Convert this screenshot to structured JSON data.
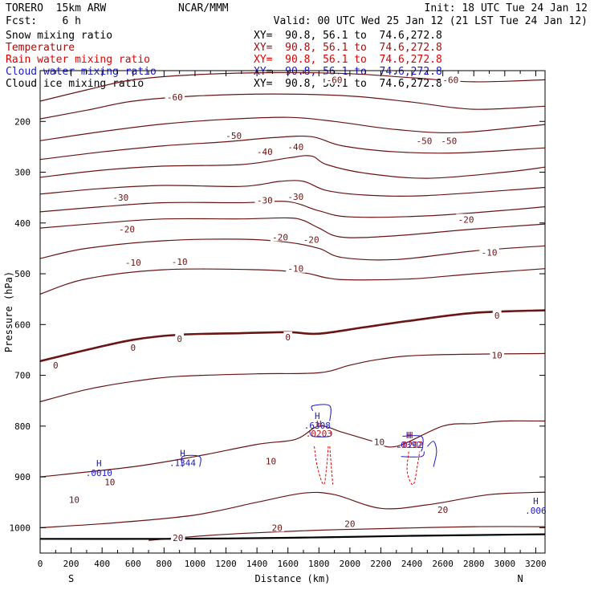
{
  "header": {
    "left_title": "TORERO  15km ARW",
    "center_title": "NCAR/MMM",
    "init": "Init: 18 UTC Tue 24 Jan 12",
    "fcst": "Fcst:    6 h",
    "valid": "Valid: 00 UTC Wed 25 Jan 12 (21 LST Tue 24 Jan 12)"
  },
  "fields": [
    {
      "name": "Snow mixing ratio",
      "xy": "XY=  90.8, 56.1 to  74.6,272.8",
      "color": "#000000"
    },
    {
      "name": "Temperature",
      "xy": "XY=  90.8, 56.1 to  74.6,272.8",
      "color": "#a01010"
    },
    {
      "name": "Rain water mixing ratio",
      "xy": "XY=  90.8, 56.1 to  74.6,272.8",
      "color": "#e00000"
    },
    {
      "name": "Cloud water mixing ratio",
      "xy": "XY=  90.8, 56.1 to  74.6,272.8",
      "color": "#1a1acc"
    },
    {
      "name": "Cloud ice mixing ratio",
      "xy": "XY=  90.8, 56.1 to  74.6,272.8",
      "color": "#000000"
    }
  ],
  "chart_data": {
    "type": "contour",
    "xlabel": "Distance (km)",
    "ylabel": "Pressure (hPa)",
    "xlim": [
      0,
      3260
    ],
    "ylim": [
      1050,
      100
    ],
    "x_ticks": [
      0,
      100,
      200,
      300,
      400,
      500,
      600,
      700,
      800,
      900,
      1000,
      1100,
      1200,
      1300,
      1400,
      1500,
      1600,
      1700,
      1800,
      1900,
      2000,
      2100,
      2200,
      2300,
      2400,
      2500,
      2600,
      2700,
      2800,
      2900,
      3000,
      3100,
      3200
    ],
    "x_tick_labels": [
      "0",
      "200",
      "400",
      "600",
      "800",
      "1000",
      "1200",
      "1400",
      "1600",
      "1800",
      "2000",
      "2200",
      "2400",
      "2600",
      "2800",
      "3000",
      "3200"
    ],
    "y_ticks": [
      200,
      300,
      400,
      500,
      600,
      700,
      800,
      900,
      1000
    ],
    "end_labels": {
      "left": "S",
      "right": "N"
    },
    "temperature_colors": {
      "line": "#6a1414",
      "zero": "#6a1414",
      "surface": "#000000"
    },
    "temperature_contours": [
      {
        "level": -60,
        "points": [
          [
            0,
            160
          ],
          [
            300,
            138
          ],
          [
            600,
            118
          ],
          [
            1000,
            108
          ],
          [
            1500,
            104
          ],
          [
            2000,
            106
          ],
          [
            2400,
            114
          ],
          [
            2800,
            122
          ],
          [
            3260,
            118
          ]
        ]
      },
      {
        "level": -60,
        "points": [
          [
            0,
            195
          ],
          [
            300,
            178
          ],
          [
            600,
            160
          ],
          [
            1000,
            150
          ],
          [
            1500,
            146
          ],
          [
            2000,
            150
          ],
          [
            2400,
            162
          ],
          [
            2800,
            176
          ],
          [
            3260,
            170
          ]
        ]
      },
      {
        "level": -50,
        "points": [
          [
            0,
            238
          ],
          [
            400,
            220
          ],
          [
            800,
            205
          ],
          [
            1200,
            196
          ],
          [
            1600,
            192
          ],
          [
            1900,
            200
          ],
          [
            2300,
            216
          ],
          [
            2700,
            222
          ],
          [
            3260,
            206
          ]
        ]
      },
      {
        "level": -40,
        "points": [
          [
            0,
            275
          ],
          [
            400,
            260
          ],
          [
            800,
            248
          ],
          [
            1200,
            240
          ],
          [
            1500,
            232
          ],
          [
            1750,
            230
          ],
          [
            1950,
            248
          ],
          [
            2300,
            260
          ],
          [
            2700,
            262
          ],
          [
            3260,
            252
          ]
        ]
      },
      {
        "level": -30,
        "points": [
          [
            0,
            310
          ],
          [
            400,
            296
          ],
          [
            800,
            288
          ],
          [
            1300,
            285
          ],
          [
            1600,
            272
          ],
          [
            1750,
            268
          ],
          [
            1850,
            285
          ],
          [
            2100,
            302
          ],
          [
            2500,
            312
          ],
          [
            3000,
            300
          ],
          [
            3260,
            290
          ]
        ]
      },
      {
        "level": -30,
        "points": [
          [
            0,
            343
          ],
          [
            400,
            332
          ],
          [
            800,
            326
          ],
          [
            1300,
            328
          ],
          [
            1550,
            318
          ],
          [
            1700,
            318
          ],
          [
            1850,
            336
          ],
          [
            2100,
            345
          ],
          [
            2500,
            346
          ],
          [
            3260,
            330
          ]
        ]
      },
      {
        "level": -20,
        "points": [
          [
            0,
            378
          ],
          [
            400,
            368
          ],
          [
            800,
            360
          ],
          [
            1300,
            360
          ],
          [
            1600,
            358
          ],
          [
            1800,
            376
          ],
          [
            2000,
            388
          ],
          [
            2500,
            386
          ],
          [
            3000,
            375
          ],
          [
            3260,
            368
          ]
        ]
      },
      {
        "level": -20,
        "points": [
          [
            0,
            410
          ],
          [
            400,
            400
          ],
          [
            800,
            392
          ],
          [
            1300,
            392
          ],
          [
            1600,
            390
          ],
          [
            1700,
            395
          ],
          [
            1800,
            410
          ],
          [
            1950,
            428
          ],
          [
            2300,
            425
          ],
          [
            2800,
            412
          ],
          [
            3260,
            402
          ]
        ]
      },
      {
        "level": -10,
        "points": [
          [
            0,
            470
          ],
          [
            300,
            450
          ],
          [
            800,
            435
          ],
          [
            1300,
            432
          ],
          [
            1600,
            438
          ],
          [
            1800,
            450
          ],
          [
            1950,
            468
          ],
          [
            2300,
            472
          ],
          [
            2800,
            455
          ],
          [
            3260,
            445
          ]
        ]
      },
      {
        "level": -10,
        "points": [
          [
            0,
            540
          ],
          [
            300,
            510
          ],
          [
            800,
            492
          ],
          [
            1400,
            492
          ],
          [
            1700,
            498
          ],
          [
            1850,
            508
          ],
          [
            2000,
            512
          ],
          [
            2400,
            510
          ],
          [
            2800,
            500
          ],
          [
            3260,
            490
          ]
        ]
      },
      {
        "level": 0,
        "points": [
          [
            0,
            672
          ],
          [
            300,
            650
          ],
          [
            600,
            630
          ],
          [
            900,
            620
          ],
          [
            1300,
            617
          ],
          [
            1600,
            615
          ],
          [
            1800,
            618
          ],
          [
            2100,
            605
          ],
          [
            2400,
            592
          ],
          [
            2800,
            577
          ],
          [
            3260,
            572
          ]
        ]
      },
      {
        "level": 10,
        "points": [
          [
            0,
            752
          ],
          [
            300,
            728
          ],
          [
            600,
            712
          ],
          [
            900,
            702
          ],
          [
            1400,
            697
          ],
          [
            1800,
            695
          ],
          [
            2000,
            680
          ],
          [
            2200,
            668
          ],
          [
            2500,
            660
          ],
          [
            3260,
            657
          ]
        ]
      },
      {
        "level": 10,
        "points": [
          [
            0,
            900
          ],
          [
            600,
            880
          ],
          [
            1000,
            860
          ],
          [
            1400,
            836
          ],
          [
            1650,
            826
          ],
          [
            1800,
            800
          ],
          [
            1950,
            812
          ],
          [
            2150,
            830
          ],
          [
            2300,
            840
          ],
          [
            2600,
            800
          ],
          [
            2800,
            795
          ],
          [
            3000,
            790
          ],
          [
            3260,
            790
          ]
        ]
      },
      {
        "level": 20,
        "points": [
          [
            0,
            1000
          ],
          [
            500,
            990
          ],
          [
            1000,
            975
          ],
          [
            1400,
            950
          ],
          [
            1700,
            932
          ],
          [
            1900,
            935
          ],
          [
            2200,
            962
          ],
          [
            2500,
            955
          ],
          [
            2900,
            935
          ],
          [
            3260,
            930
          ]
        ]
      },
      {
        "level": 20,
        "points": [
          [
            700,
            1025
          ],
          [
            1100,
            1015
          ],
          [
            1400,
            1010
          ],
          [
            1800,
            1005
          ],
          [
            2200,
            1002
          ],
          [
            2800,
            998
          ],
          [
            3260,
            998
          ]
        ]
      }
    ],
    "surface_line": [
      [
        0,
        1022
      ],
      [
        800,
        1022
      ],
      [
        1600,
        1020
      ],
      [
        2400,
        1016
      ],
      [
        3260,
        1013
      ]
    ],
    "contour_labels": [
      {
        "text": "-60",
        "x": 870,
        "y": 152
      },
      {
        "text": "-60",
        "x": 1900,
        "y": 118
      },
      {
        "text": "-60",
        "x": 2650,
        "y": 118
      },
      {
        "text": "-50",
        "x": 1250,
        "y": 228
      },
      {
        "text": "-50",
        "x": 2480,
        "y": 238
      },
      {
        "text": "-50",
        "x": 2640,
        "y": 238
      },
      {
        "text": "-40",
        "x": 1450,
        "y": 260
      },
      {
        "text": "-40",
        "x": 1650,
        "y": 250
      },
      {
        "text": "-30",
        "x": 520,
        "y": 350
      },
      {
        "text": "-30",
        "x": 1450,
        "y": 355
      },
      {
        "text": "-30",
        "x": 1650,
        "y": 348
      },
      {
        "text": "-20",
        "x": 560,
        "y": 412
      },
      {
        "text": "-20",
        "x": 1550,
        "y": 428
      },
      {
        "text": "-20",
        "x": 1750,
        "y": 433
      },
      {
        "text": "-20",
        "x": 2750,
        "y": 393
      },
      {
        "text": "-10",
        "x": 600,
        "y": 478
      },
      {
        "text": "-10",
        "x": 900,
        "y": 476
      },
      {
        "text": "-10",
        "x": 1650,
        "y": 490
      },
      {
        "text": "-10",
        "x": 2900,
        "y": 458
      },
      {
        "text": "0",
        "x": 100,
        "y": 680
      },
      {
        "text": "0",
        "x": 600,
        "y": 645
      },
      {
        "text": "0",
        "x": 900,
        "y": 628
      },
      {
        "text": "0",
        "x": 1600,
        "y": 625
      },
      {
        "text": "0",
        "x": 2950,
        "y": 582
      },
      {
        "text": "10",
        "x": 2950,
        "y": 660
      },
      {
        "text": "10",
        "x": 2190,
        "y": 831
      },
      {
        "text": "10",
        "x": 1490,
        "y": 869
      },
      {
        "text": "10",
        "x": 450,
        "y": 910
      },
      {
        "text": "10",
        "x": 220,
        "y": 945
      },
      {
        "text": "20",
        "x": 1530,
        "y": 1000
      },
      {
        "text": "20",
        "x": 2000,
        "y": 992
      },
      {
        "text": "20",
        "x": 2600,
        "y": 965
      },
      {
        "text": "20",
        "x": 890,
        "y": 1020
      }
    ],
    "cloud_water_annotations": [
      {
        "marker": "H",
        "value": ".0010",
        "x": 380,
        "y": 886
      },
      {
        "marker": "H",
        "value": ".1344",
        "x": 920,
        "y": 866
      },
      {
        "marker": "H",
        "value": ".6308",
        "x": 1790,
        "y": 792
      },
      {
        "marker": "H",
        "value": ".0392",
        "x": 2380,
        "y": 830
      },
      {
        "marker": "H",
        "value": ".006",
        "x": 3200,
        "y": 960
      }
    ],
    "rain_water_annotations": [
      {
        "marker": "H",
        "value": ".0203",
        "x": 1800,
        "y": 808
      },
      {
        "marker": "H",
        "value": ".0202",
        "x": 2390,
        "y": 830
      }
    ],
    "cloud_outlines": [
      [
        [
          1760,
          770
        ],
        [
          1760,
          760
        ],
        [
          1870,
          760
        ],
        [
          1870,
          790
        ]
      ],
      [
        [
          1740,
          810
        ],
        [
          1760,
          820
        ],
        [
          1870,
          820
        ],
        [
          1880,
          810
        ]
      ],
      [
        [
          920,
          880
        ],
        [
          920,
          860
        ],
        [
          1030,
          860
        ],
        [
          1030,
          880
        ]
      ],
      [
        [
          2340,
          820
        ],
        [
          2460,
          820
        ],
        [
          2470,
          840
        ],
        [
          2460,
          850
        ]
      ],
      [
        [
          2330,
          860
        ],
        [
          2460,
          860
        ],
        [
          2480,
          850
        ]
      ],
      [
        [
          2500,
          840
        ],
        [
          2540,
          830
        ],
        [
          2560,
          850
        ],
        [
          2540,
          880
        ]
      ]
    ],
    "rain_outlines": [
      [
        [
          1770,
          840
        ],
        [
          1790,
          880
        ],
        [
          1830,
          915
        ],
        [
          1850,
          880
        ],
        [
          1860,
          840
        ]
      ],
      [
        [
          1870,
          840
        ],
        [
          1880,
          880
        ],
        [
          1890,
          915
        ]
      ],
      [
        [
          2380,
          850
        ],
        [
          2370,
          890
        ],
        [
          2410,
          915
        ],
        [
          2440,
          870
        ],
        [
          2450,
          850
        ]
      ]
    ]
  }
}
